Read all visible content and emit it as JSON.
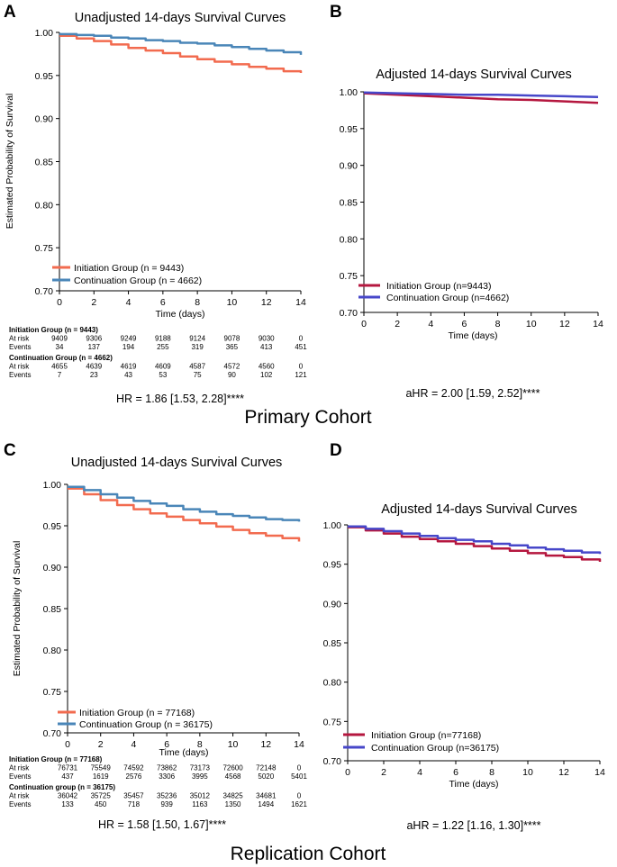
{
  "cohorts": [
    {
      "label": "Primary Cohort"
    },
    {
      "label": "Replication Cohort"
    }
  ],
  "chart_data": [
    {
      "panel": "A",
      "type": "line",
      "step": true,
      "title": "Unadjusted 14-days Survival Curves",
      "xlabel": "Time (days)",
      "ylabel": "Estimated Probability of Survival",
      "xlim": [
        0,
        14
      ],
      "ylim": [
        0.7,
        1.0
      ],
      "xticks": [
        "0",
        "2",
        "4",
        "6",
        "8",
        "10",
        "12",
        "14"
      ],
      "yticks": [
        "1.00",
        "0.95",
        "0.90",
        "0.85",
        "0.80",
        "0.75",
        "0.70"
      ],
      "series": [
        {
          "name": "Initiation Group (n = 9443)",
          "color": "#f26b4f",
          "x": [
            0,
            1,
            2,
            3,
            4,
            5,
            6,
            7,
            8,
            9,
            10,
            11,
            12,
            13,
            14
          ],
          "y": [
            0.996,
            0.993,
            0.99,
            0.986,
            0.982,
            0.979,
            0.976,
            0.972,
            0.969,
            0.966,
            0.963,
            0.96,
            0.958,
            0.955,
            0.953
          ]
        },
        {
          "name": "Continuation Group (n = 4662)",
          "color": "#4a86b8",
          "x": [
            0,
            1,
            2,
            3,
            4,
            5,
            6,
            7,
            8,
            9,
            10,
            11,
            12,
            13,
            14
          ],
          "y": [
            0.998,
            0.997,
            0.996,
            0.994,
            0.993,
            0.991,
            0.99,
            0.988,
            0.987,
            0.985,
            0.983,
            0.981,
            0.979,
            0.977,
            0.974
          ]
        }
      ],
      "risk_table": {
        "group1": {
          "title": "Initiation Group (n = 9443)",
          "at_risk": [
            "9409",
            "9306",
            "9249",
            "9188",
            "9124",
            "9078",
            "9030",
            "0"
          ],
          "events": [
            "34",
            "137",
            "194",
            "255",
            "319",
            "365",
            "413",
            "451"
          ]
        },
        "group2": {
          "title": "Continuation Group (n = 4662)",
          "at_risk": [
            "4655",
            "4639",
            "4619",
            "4609",
            "4587",
            "4572",
            "4560",
            "0"
          ],
          "events": [
            "7",
            "23",
            "43",
            "53",
            "75",
            "90",
            "102",
            "121"
          ]
        },
        "at_risk_label": "At risk",
        "events_label": "Events"
      },
      "hr": "HR = 1.86 [1.53, 2.28]****"
    },
    {
      "panel": "B",
      "type": "line",
      "step": false,
      "title": "Adjusted 14-days Survival Curves",
      "xlabel": "Time (days)",
      "ylabel": "",
      "xlim": [
        0,
        14
      ],
      "ylim": [
        0.7,
        1.0
      ],
      "xticks": [
        "0",
        "2",
        "4",
        "6",
        "8",
        "10",
        "12",
        "14"
      ],
      "yticks": [
        "1.00",
        "0.95",
        "0.90",
        "0.85",
        "0.80",
        "0.75",
        "0.70"
      ],
      "series": [
        {
          "name": "Initiation Group (n=9443)",
          "color": "#b5173f",
          "x": [
            0,
            2,
            4,
            6,
            8,
            10,
            12,
            14
          ],
          "y": [
            0.998,
            0.996,
            0.994,
            0.992,
            0.99,
            0.989,
            0.987,
            0.985
          ]
        },
        {
          "name": "Continuation Group (n=4662)",
          "color": "#4747c9",
          "x": [
            0,
            2,
            4,
            6,
            8,
            10,
            12,
            14
          ],
          "y": [
            0.999,
            0.998,
            0.997,
            0.996,
            0.996,
            0.995,
            0.994,
            0.993
          ]
        }
      ],
      "hr": "aHR = 2.00 [1.59, 2.52]****"
    },
    {
      "panel": "C",
      "type": "line",
      "step": true,
      "title": "Unadjusted 14-days Survival Curves",
      "xlabel": "Time  (days)",
      "ylabel": "Estimated Probability of Survival",
      "xlim": [
        0,
        14
      ],
      "ylim": [
        0.7,
        1.0
      ],
      "xticks": [
        "0",
        "2",
        "4",
        "6",
        "8",
        "10",
        "12",
        "14"
      ],
      "yticks": [
        "1.00",
        "0.95",
        "0.90",
        "0.85",
        "0.80",
        "0.75",
        "0.70"
      ],
      "series": [
        {
          "name": "Initiation Group (n = 77168)",
          "color": "#f26b4f",
          "x": [
            0,
            1,
            2,
            3,
            4,
            5,
            6,
            7,
            8,
            9,
            10,
            11,
            12,
            13,
            14
          ],
          "y": [
            0.995,
            0.988,
            0.981,
            0.975,
            0.97,
            0.965,
            0.961,
            0.957,
            0.953,
            0.949,
            0.945,
            0.941,
            0.938,
            0.935,
            0.931
          ]
        },
        {
          "name": "Continuation Group (n = 36175)",
          "color": "#4a86b8",
          "x": [
            0,
            1,
            2,
            3,
            4,
            5,
            6,
            7,
            8,
            9,
            10,
            11,
            12,
            13,
            14
          ],
          "y": [
            0.997,
            0.993,
            0.988,
            0.984,
            0.98,
            0.977,
            0.974,
            0.97,
            0.967,
            0.964,
            0.962,
            0.96,
            0.958,
            0.957,
            0.955
          ]
        }
      ],
      "risk_table": {
        "group1": {
          "title": "Initiation Group (n = 77168)",
          "at_risk": [
            "76731",
            "75549",
            "74592",
            "73862",
            "73173",
            "72600",
            "72148",
            "0"
          ],
          "events": [
            "437",
            "1619",
            "2576",
            "3306",
            "3995",
            "4568",
            "5020",
            "5401"
          ]
        },
        "group2": {
          "title": "Continuation group (n = 36175)",
          "at_risk": [
            "36042",
            "35725",
            "35457",
            "35236",
            "35012",
            "34825",
            "34681",
            "0"
          ],
          "events": [
            "133",
            "450",
            "718",
            "939",
            "1163",
            "1350",
            "1494",
            "1621"
          ]
        },
        "at_risk_label": "At risk",
        "events_label": "Events"
      },
      "hr": "HR = 1.58 [1.50, 1.67]****"
    },
    {
      "panel": "D",
      "type": "line",
      "step": true,
      "title": "Adjusted 14-days Survival Curves",
      "xlabel": "Time (days)",
      "ylabel": "",
      "xlim": [
        0,
        14
      ],
      "ylim": [
        0.7,
        1.0
      ],
      "xticks": [
        "0",
        "2",
        "4",
        "6",
        "8",
        "10",
        "12",
        "14"
      ],
      "yticks": [
        "1.00",
        "0.95",
        "0.90",
        "0.85",
        "0.80",
        "0.75",
        "0.70"
      ],
      "series": [
        {
          "name": "Initiation Group (n=77168)",
          "color": "#b5173f",
          "x": [
            0,
            1,
            2,
            3,
            4,
            5,
            6,
            7,
            8,
            9,
            10,
            11,
            12,
            13,
            14
          ],
          "y": [
            0.997,
            0.993,
            0.989,
            0.985,
            0.982,
            0.979,
            0.976,
            0.973,
            0.97,
            0.967,
            0.964,
            0.961,
            0.959,
            0.956,
            0.953
          ]
        },
        {
          "name": "Continuation Group (n=36175)",
          "color": "#4747c9",
          "x": [
            0,
            1,
            2,
            3,
            4,
            5,
            6,
            7,
            8,
            9,
            10,
            11,
            12,
            13,
            14
          ],
          "y": [
            0.998,
            0.995,
            0.992,
            0.989,
            0.986,
            0.983,
            0.981,
            0.979,
            0.976,
            0.974,
            0.971,
            0.969,
            0.967,
            0.965,
            0.963
          ]
        }
      ],
      "hr": "aHR = 1.22 [1.16, 1.30]****"
    }
  ]
}
